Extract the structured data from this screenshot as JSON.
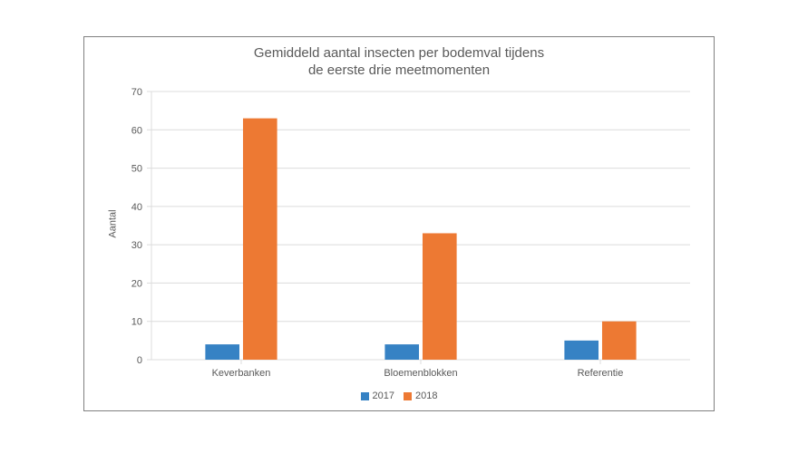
{
  "chart": {
    "type": "bar",
    "title": "Gemiddeld aantal insecten per bodemval tijdens\nde eerste drie meetmomenten",
    "title_fontsize": 15,
    "title_color": "#595959",
    "ylabel": "Aantal",
    "ylabel_fontsize": 11,
    "categories": [
      "Keverbanken",
      "Bloemenblokken",
      "Referentie"
    ],
    "series": [
      {
        "name": "2017",
        "color": "#3682c4",
        "values": [
          4,
          4,
          5
        ]
      },
      {
        "name": "2018",
        "color": "#ed7933",
        "values": [
          63,
          33,
          10
        ]
      }
    ],
    "ylim": [
      0,
      70
    ],
    "ytick_step": 10,
    "grid_color": "#dcdcdc",
    "axis_color": "#dcdcdc",
    "background_color": "#ffffff",
    "card_border_color": "#808080",
    "tick_label_color": "#595959",
    "tick_label_fontsize": 11,
    "bar_width": 0.19,
    "group_gap": 0.02,
    "legend_position": "bottom"
  }
}
